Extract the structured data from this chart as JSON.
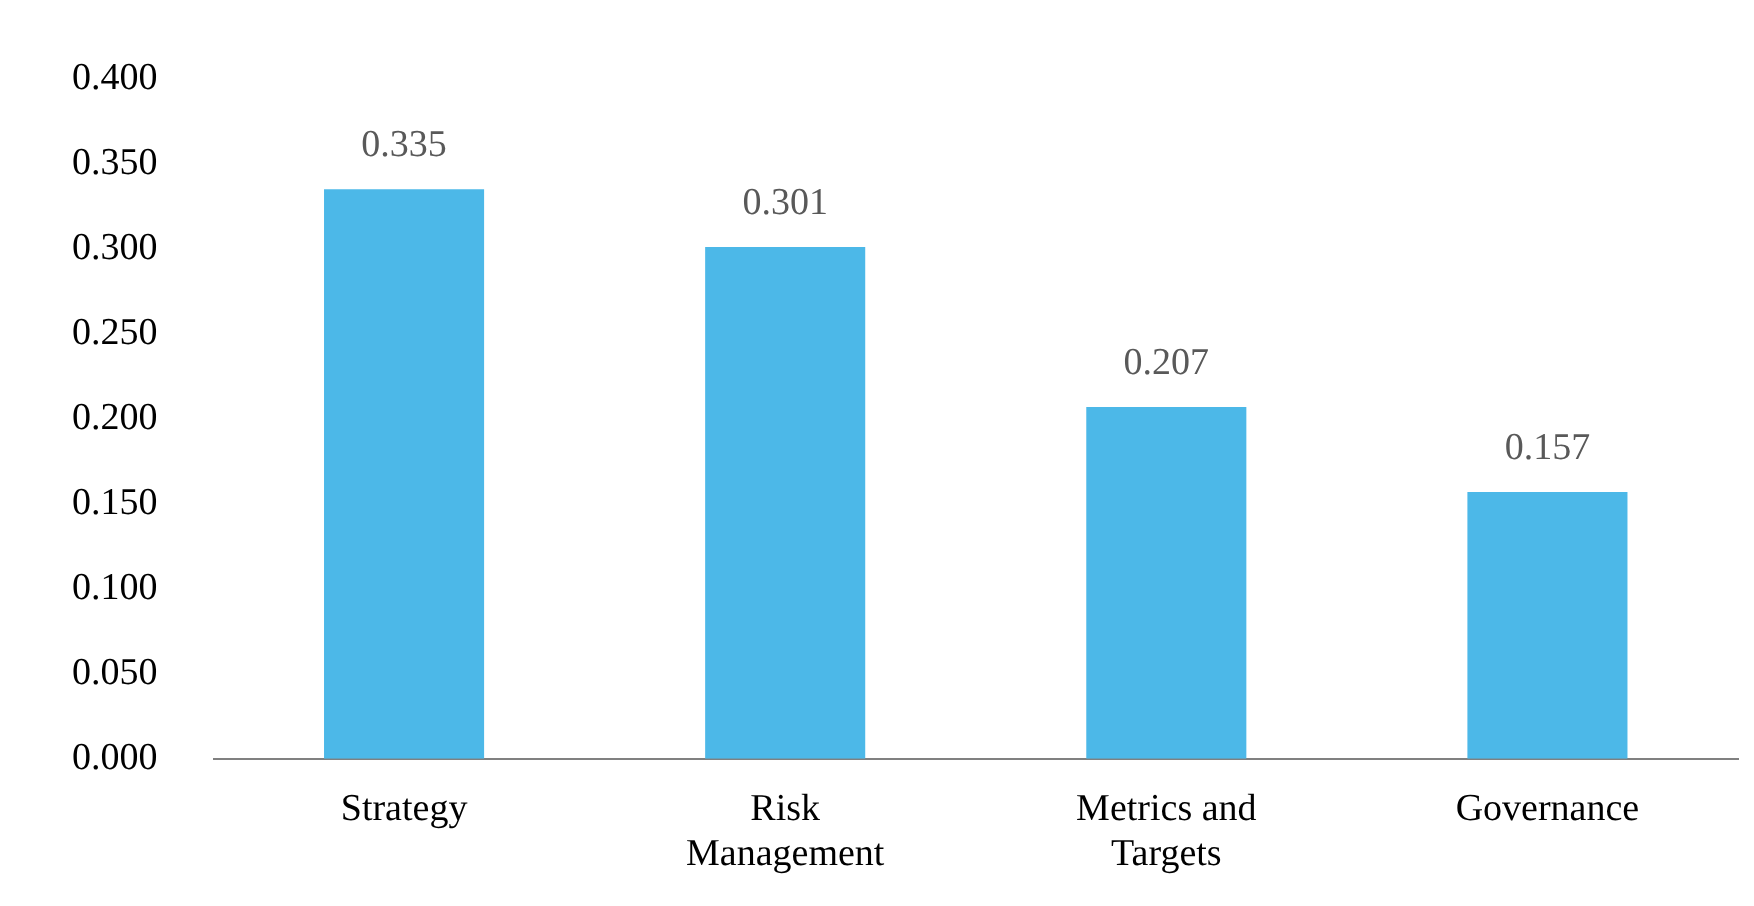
{
  "chart_data": {
    "type": "bar",
    "categories": [
      "Strategy",
      "Risk Management",
      "Metrics and Targets",
      "Governance"
    ],
    "values": [
      0.335,
      0.301,
      0.207,
      0.157
    ],
    "color": "#4cb8e8",
    "ylim": [
      0,
      0.4
    ],
    "yticks": [
      {
        "value": 0,
        "label": "0.000"
      },
      {
        "value": 0.05,
        "label": "0.050"
      },
      {
        "value": 0.1,
        "label": "0.100"
      },
      {
        "value": 0.15,
        "label": "0.150"
      },
      {
        "value": 0.2,
        "label": "0.200"
      },
      {
        "value": 0.25,
        "label": "0.250"
      },
      {
        "value": 0.3,
        "label": "0.300"
      },
      {
        "value": 0.35,
        "label": "0.350"
      },
      {
        "value": 0.4,
        "label": "0.400"
      }
    ],
    "grid": false,
    "legend": false,
    "data_labels": true
  }
}
